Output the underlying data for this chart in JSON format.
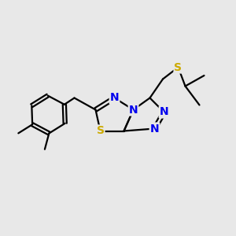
{
  "background_color": "#e8e8e8",
  "atom_colors": {
    "C": "#000000",
    "N": "#0000ee",
    "S": "#ccaa00",
    "H": "#000000"
  },
  "bond_color": "#000000",
  "bond_width": 1.6,
  "font_size_atoms": 10
}
